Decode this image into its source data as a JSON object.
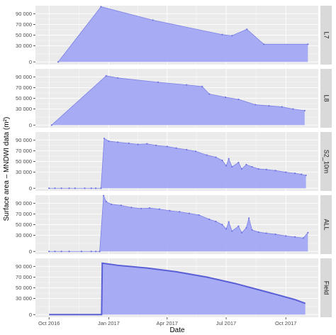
{
  "chart_data": {
    "type": "area",
    "xlabel": "Date",
    "ylabel": "Surface area – MNDWI data (m²)",
    "x_range": [
      "2016-09-10",
      "2017-11-20"
    ],
    "x_ticks": [
      {
        "date": "2016-10-01",
        "label": "Oct 2016"
      },
      {
        "date": "2017-01-01",
        "label": "Jan 2017"
      },
      {
        "date": "2017-04-01",
        "label": "Apr 2017"
      },
      {
        "date": "2017-07-01",
        "label": "Jul 2017"
      },
      {
        "date": "2017-10-01",
        "label": "Oct 2017"
      }
    ],
    "y_range": [
      -5000,
      105000
    ],
    "y_ticks": [
      {
        "value": 0,
        "label": "0"
      },
      {
        "value": 30000,
        "label": "30 000"
      },
      {
        "value": 50000,
        "label": "50 000"
      },
      {
        "value": 70000,
        "label": "70 000"
      },
      {
        "value": 90000,
        "label": "90 000"
      }
    ],
    "grid": true,
    "colors": {
      "fill": "#a3a8f3",
      "line": "#7b80e8",
      "point": "#6f74df",
      "field_line": "#5b5fd6",
      "panel_bg": "#ebebeb",
      "strip_bg": "#d9d9d9",
      "grid": "#ffffff"
    },
    "panels": [
      {
        "label": "L7",
        "points": [
          [
            "2016-10-15",
            0
          ],
          [
            "2016-12-20",
            103000
          ],
          [
            "2017-03-10",
            78000
          ],
          [
            "2017-06-25",
            51000
          ],
          [
            "2017-07-10",
            49000
          ],
          [
            "2017-08-02",
            61000
          ],
          [
            "2017-08-28",
            33000
          ],
          [
            "2017-11-04",
            33000
          ]
        ]
      },
      {
        "label": "L8",
        "points": [
          [
            "2016-10-05",
            0
          ],
          [
            "2016-12-28",
            92000
          ],
          [
            "2017-01-15",
            88000
          ],
          [
            "2017-03-18",
            80000
          ],
          [
            "2017-05-01",
            75000
          ],
          [
            "2017-05-25",
            72000
          ],
          [
            "2017-06-05",
            58000
          ],
          [
            "2017-06-30",
            52000
          ],
          [
            "2017-07-20",
            48000
          ],
          [
            "2017-08-15",
            38000
          ],
          [
            "2017-09-05",
            36000
          ],
          [
            "2017-09-25",
            34000
          ],
          [
            "2017-10-12",
            30000
          ],
          [
            "2017-10-30",
            27000
          ]
        ]
      },
      {
        "label": "S2_10m",
        "points": [
          [
            "2016-10-01",
            0
          ],
          [
            "2016-10-10",
            0
          ],
          [
            "2016-10-20",
            0
          ],
          [
            "2016-11-01",
            0
          ],
          [
            "2016-11-10",
            0
          ],
          [
            "2016-11-25",
            0
          ],
          [
            "2016-12-05",
            0
          ],
          [
            "2016-12-12",
            0
          ],
          [
            "2016-12-20",
            0
          ],
          [
            "2016-12-25",
            93000
          ],
          [
            "2017-01-01",
            88000
          ],
          [
            "2017-01-15",
            86000
          ],
          [
            "2017-02-01",
            84000
          ],
          [
            "2017-02-15",
            82000
          ],
          [
            "2017-03-01",
            83000
          ],
          [
            "2017-03-15",
            80000
          ],
          [
            "2017-04-01",
            78000
          ],
          [
            "2017-04-15",
            75000
          ],
          [
            "2017-05-01",
            72000
          ],
          [
            "2017-05-15",
            69000
          ],
          [
            "2017-06-01",
            62000
          ],
          [
            "2017-06-15",
            58000
          ],
          [
            "2017-06-25",
            52000
          ],
          [
            "2017-07-01",
            42000
          ],
          [
            "2017-07-05",
            55000
          ],
          [
            "2017-07-10",
            40000
          ],
          [
            "2017-07-20",
            48000
          ],
          [
            "2017-07-25",
            36000
          ],
          [
            "2017-08-01",
            44000
          ],
          [
            "2017-08-10",
            40000
          ],
          [
            "2017-08-20",
            36000
          ],
          [
            "2017-09-01",
            35000
          ],
          [
            "2017-09-15",
            33000
          ],
          [
            "2017-10-01",
            30000
          ],
          [
            "2017-10-15",
            28000
          ],
          [
            "2017-10-25",
            26000
          ],
          [
            "2017-11-01",
            24000
          ]
        ]
      },
      {
        "label": "ALL",
        "points": [
          [
            "2016-10-01",
            0
          ],
          [
            "2016-10-10",
            0
          ],
          [
            "2016-10-20",
            0
          ],
          [
            "2016-11-01",
            0
          ],
          [
            "2016-11-20",
            0
          ],
          [
            "2016-12-05",
            0
          ],
          [
            "2016-12-12",
            0
          ],
          [
            "2016-12-18",
            0
          ],
          [
            "2016-12-24",
            104000
          ],
          [
            "2016-12-28",
            93000
          ],
          [
            "2017-01-05",
            88000
          ],
          [
            "2017-01-20",
            86000
          ],
          [
            "2017-02-05",
            82000
          ],
          [
            "2017-02-20",
            80000
          ],
          [
            "2017-03-05",
            81000
          ],
          [
            "2017-03-20",
            79000
          ],
          [
            "2017-04-05",
            76000
          ],
          [
            "2017-04-20",
            74000
          ],
          [
            "2017-05-05",
            71000
          ],
          [
            "2017-05-20",
            68000
          ],
          [
            "2017-06-05",
            60000
          ],
          [
            "2017-06-15",
            56000
          ],
          [
            "2017-06-25",
            50000
          ],
          [
            "2017-07-01",
            42000
          ],
          [
            "2017-07-05",
            55000
          ],
          [
            "2017-07-10",
            38000
          ],
          [
            "2017-07-20",
            47000
          ],
          [
            "2017-07-25",
            35000
          ],
          [
            "2017-08-01",
            44000
          ],
          [
            "2017-08-05",
            62000
          ],
          [
            "2017-08-10",
            40000
          ],
          [
            "2017-08-20",
            36000
          ],
          [
            "2017-09-01",
            34000
          ],
          [
            "2017-09-15",
            32000
          ],
          [
            "2017-10-01",
            29000
          ],
          [
            "2017-10-15",
            27000
          ],
          [
            "2017-10-28",
            25000
          ],
          [
            "2017-11-04",
            35000
          ]
        ]
      },
      {
        "label": "Field",
        "points": [
          [
            "2016-10-01",
            0
          ],
          [
            "2016-12-21",
            0
          ],
          [
            "2016-12-22",
            96000
          ],
          [
            "2017-01-15",
            92000
          ],
          [
            "2017-03-01",
            87000
          ],
          [
            "2017-04-15",
            80000
          ],
          [
            "2017-06-01",
            70000
          ],
          [
            "2017-07-15",
            58000
          ],
          [
            "2017-08-15",
            48000
          ],
          [
            "2017-09-15",
            38000
          ],
          [
            "2017-10-15",
            28000
          ],
          [
            "2017-10-31",
            21000
          ]
        ]
      }
    ]
  }
}
